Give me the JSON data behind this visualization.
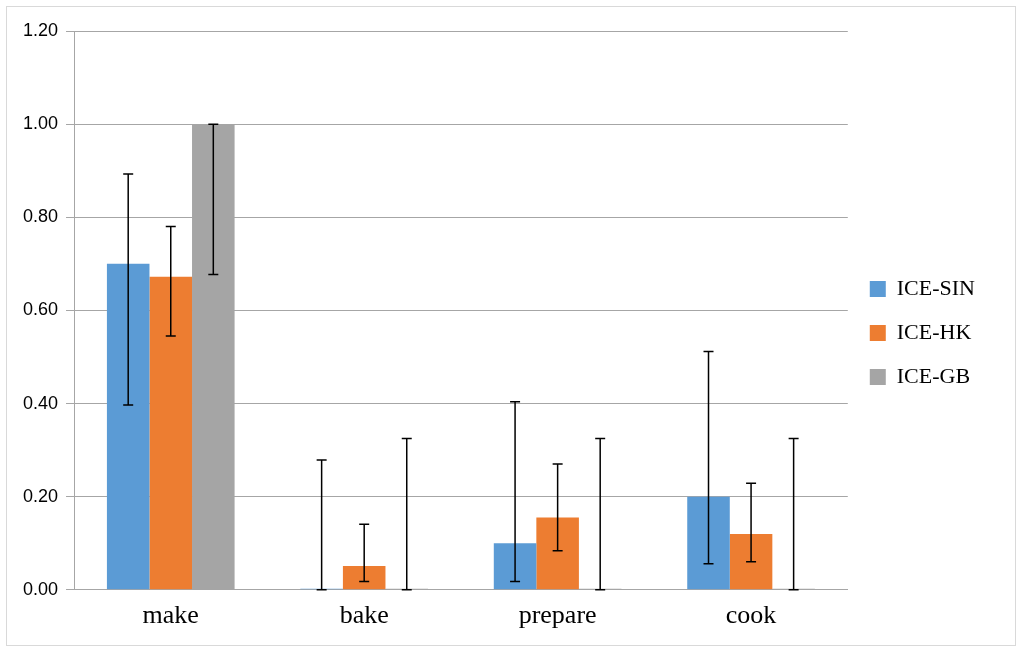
{
  "chart_data": {
    "type": "bar",
    "categories": [
      "make",
      "bake",
      "prepare",
      "cook"
    ],
    "series": [
      {
        "name": "ICE-SIN",
        "color": "#5b9bd5",
        "values": [
          0.7,
          0,
          0.1,
          0.2
        ],
        "errors": [
          [
            0.397,
            0.893
          ],
          [
            0,
            0.279
          ],
          [
            0.018,
            0.404
          ],
          [
            0.056,
            0.512
          ]
        ]
      },
      {
        "name": "ICE-HK",
        "color": "#ed7d31",
        "values": [
          0.672,
          0.051,
          0.155,
          0.12
        ],
        "errors": [
          [
            0.545,
            0.78
          ],
          [
            0.018,
            0.141
          ],
          [
            0.084,
            0.27
          ],
          [
            0.06,
            0.229
          ]
        ]
      },
      {
        "name": "ICE-GB",
        "color": "#a5a5a5",
        "values": [
          1.0,
          0,
          0,
          0
        ],
        "errors": [
          [
            0.677,
            1.0
          ],
          [
            0,
            0.325
          ],
          [
            0,
            0.325
          ],
          [
            0,
            0.325
          ]
        ]
      }
    ],
    "ylim": [
      0,
      1.2
    ],
    "yticks": [
      {
        "value": 0,
        "label": "0.00"
      },
      {
        "value": 0.2,
        "label": "0.20"
      },
      {
        "value": 0.4,
        "label": "0.40"
      },
      {
        "value": 0.6,
        "label": "0.60"
      },
      {
        "value": 0.8,
        "label": "0.80"
      },
      {
        "value": 1.0,
        "label": "1.00"
      },
      {
        "value": 1.2,
        "label": "1.20"
      }
    ],
    "grid": "y",
    "legend": "right"
  }
}
